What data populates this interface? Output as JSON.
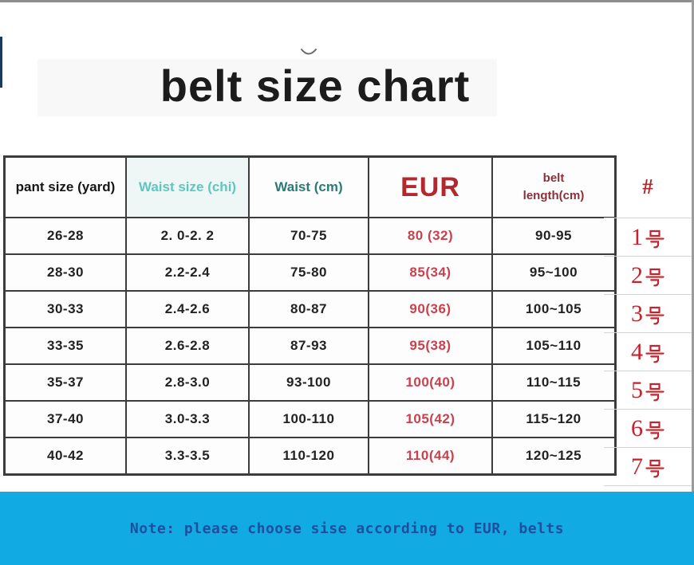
{
  "title": "belt size chart",
  "table": {
    "columns": [
      "pant size (yard)",
      "Waist size (chi)",
      "Waist (cm)",
      "EUR",
      "belt\nlength(cm)"
    ],
    "column_keys": [
      "pant-size",
      "waist-size-chi",
      "waist-cm",
      "eur",
      "belt-length"
    ],
    "rows": [
      [
        "26-28",
        "2. 0-2. 2",
        "70-75",
        "80 (32)",
        "90-95"
      ],
      [
        "28-30",
        "2.2-2.4",
        "75-80",
        "85(34)",
        "95~100"
      ],
      [
        "30-33",
        "2.4-2.6",
        "80-87",
        "90(36)",
        "100~105"
      ],
      [
        "33-35",
        "2.6-2.8",
        "87-93",
        "95(38)",
        "105~110"
      ],
      [
        "35-37",
        "2.8-3.0",
        "93-100",
        "100(40)",
        "110~115"
      ],
      [
        "37-40",
        "3.0-3.3",
        "100-110",
        "105(42)",
        "115~120"
      ],
      [
        "40-42",
        "3.3-3.5",
        "110-120",
        "110(44)",
        "120~125"
      ]
    ]
  },
  "number_column": {
    "header": "#",
    "values": [
      "1号",
      "2号",
      "3号",
      "4号",
      "5号",
      "6号",
      "7号"
    ]
  },
  "footer": {
    "note": "Note: please choose sise according to EUR, belts"
  },
  "colors": {
    "accent_red": "#b4272d",
    "value_red": "#c9414d",
    "number_red": "#c7222b",
    "teal": "#5ec6c1",
    "dark_teal": "#2a7a78",
    "maroon": "#8c3038",
    "footer_bg": "#12aae3",
    "footer_text": "#1d4f9e",
    "navy_accent": "#1c3a5e"
  }
}
